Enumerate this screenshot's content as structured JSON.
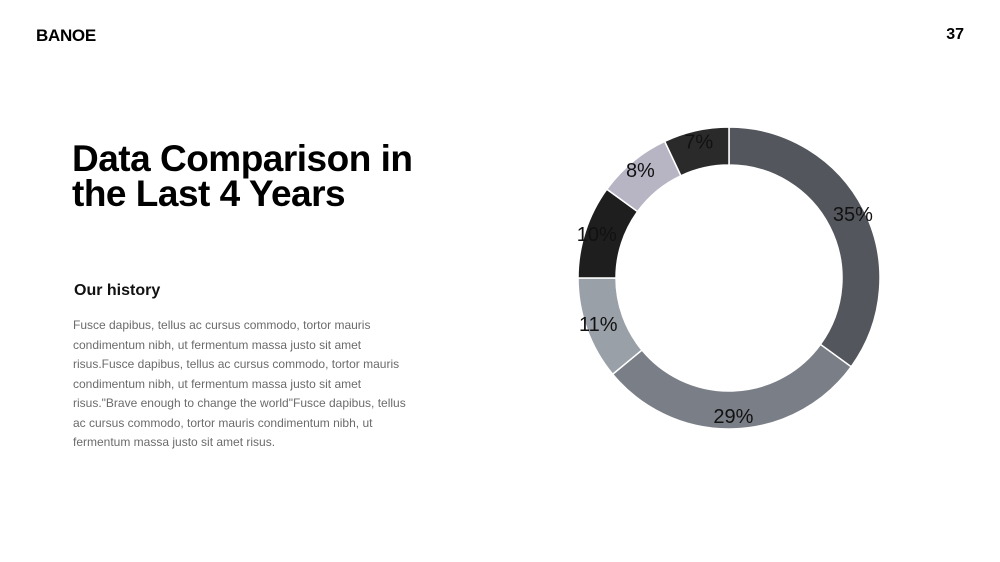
{
  "header": {
    "brand": "BANOE",
    "page_number": "37"
  },
  "content": {
    "title_line1": "Data Comparison in",
    "title_line2": "the Last 4 Years",
    "subtitle": "Our history",
    "body": "Fusce dapibus, tellus ac cursus commodo, tortor mauris condimentum nibh, ut fermentum massa justo sit amet risus.Fusce dapibus, tellus ac cursus commodo, tortor mauris condimentum nibh, ut fermentum massa justo sit amet risus.\"Brave enough to change the world\"Fusce dapibus, tellus ac cursus commodo, tortor mauris condimentum nibh, ut fermentum massa justo sit amet risus."
  },
  "chart_data": {
    "type": "pie",
    "style": "donut",
    "legend": "none",
    "slices": [
      {
        "value": 35,
        "label": "35%",
        "color": "#53565c"
      },
      {
        "value": 29,
        "label": "29%",
        "color": "#7a7e86"
      },
      {
        "value": 11,
        "label": "11%",
        "color": "#99a0a8"
      },
      {
        "value": 10,
        "label": "10%",
        "color": "#1e1e1e"
      },
      {
        "value": 8,
        "label": "8%",
        "color": "#b7b5c4"
      },
      {
        "value": 7,
        "label": "7%",
        "color": "#2a2a2a"
      }
    ]
  }
}
